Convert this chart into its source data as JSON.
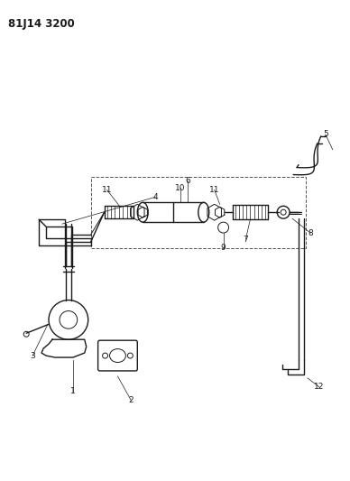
{
  "title": "81J14 3200",
  "bg": "#ffffff",
  "lc": "#1a1a1a",
  "fig_w": 3.88,
  "fig_h": 5.33,
  "dpi": 100
}
